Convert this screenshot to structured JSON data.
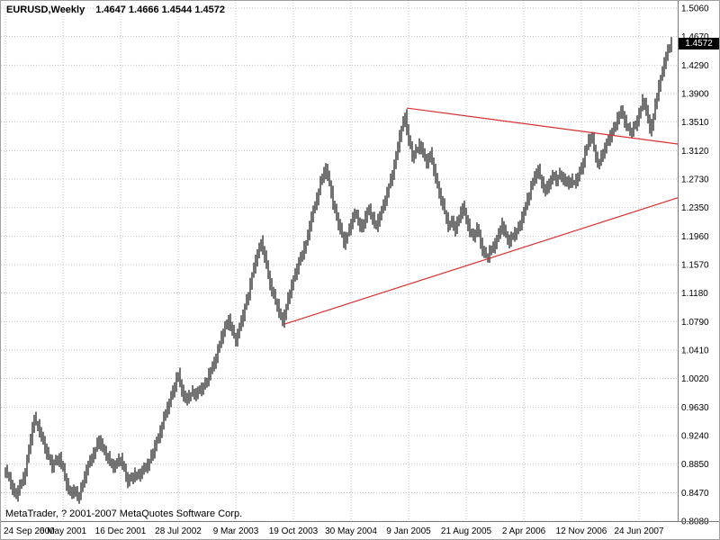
{
  "header": {
    "symbol_period": "EURUSD,Weekly",
    "ohlc_line": "1.4647 1.4666 1.4544 1.4572"
  },
  "footer": {
    "copyright": "MetaTrader, ? 2001-2007 MetaQuotes Software Corp."
  },
  "price_scale": {
    "current_price": "1.4572"
  },
  "colors": {
    "bar": "#000000",
    "grid": "#c4c4c4",
    "trendline": "#d83030",
    "axis_text": "#000000",
    "separator": "#7a7a7a",
    "price_tag_bg": "#000000",
    "price_tag_text": "#ffffff",
    "background": "#ffffff"
  },
  "chart_data": {
    "type": "bar",
    "title": "EURUSD,Weekly",
    "symbol": "EURUSD",
    "timeframe": "Weekly",
    "ohlc_display": {
      "open": 1.4647,
      "high": 1.4666,
      "low": 1.4544,
      "close": 1.4572
    },
    "y_range": [
      0.808,
      1.506
    ],
    "y_tick_labels": [
      "1.5060",
      "1.4670",
      "1.4290",
      "1.3900",
      "1.3510",
      "1.3120",
      "1.2730",
      "1.2350",
      "1.1960",
      "1.1570",
      "1.1180",
      "1.0790",
      "1.0410",
      "1.0020",
      "0.9630",
      "0.9240",
      "0.8850",
      "0.8470",
      "0.8080"
    ],
    "x_tick_labels": [
      "24 Sep 2000",
      "6 May 2001",
      "16 Dec 2001",
      "28 Jul 2002",
      "9 Mar 2003",
      "19 Oct 2003",
      "30 May 2004",
      "9 Jan 2005",
      "21 Aug 2005",
      "2 Apr 2006",
      "12 Nov 2006",
      "24 Jun 2007"
    ],
    "weeks_between_x_gridlines": 32,
    "closes_biweekly": [
      0.876,
      0.866,
      0.852,
      0.843,
      0.856,
      0.866,
      0.89,
      0.92,
      0.948,
      0.938,
      0.922,
      0.908,
      0.896,
      0.882,
      0.89,
      0.894,
      0.878,
      0.858,
      0.846,
      0.85,
      0.84,
      0.852,
      0.868,
      0.884,
      0.896,
      0.905,
      0.918,
      0.908,
      0.898,
      0.888,
      0.882,
      0.888,
      0.892,
      0.878,
      0.862,
      0.866,
      0.872,
      0.87,
      0.876,
      0.882,
      0.89,
      0.902,
      0.916,
      0.93,
      0.948,
      0.962,
      0.978,
      0.992,
      1.008,
      0.986,
      0.972,
      0.978,
      0.984,
      0.98,
      0.986,
      0.992,
      1.0,
      1.012,
      1.024,
      1.04,
      1.058,
      1.072,
      1.082,
      1.066,
      1.054,
      1.072,
      1.088,
      1.108,
      1.13,
      1.152,
      1.172,
      1.188,
      1.168,
      1.142,
      1.122,
      1.108,
      1.092,
      1.08,
      1.098,
      1.12,
      1.138,
      1.152,
      1.166,
      1.18,
      1.196,
      1.222,
      1.238,
      1.258,
      1.276,
      1.288,
      1.268,
      1.24,
      1.222,
      1.206,
      1.186,
      1.198,
      1.214,
      1.226,
      1.218,
      1.206,
      1.222,
      1.232,
      1.22,
      1.208,
      1.224,
      1.238,
      1.254,
      1.272,
      1.292,
      1.318,
      1.342,
      1.36,
      1.326,
      1.304,
      1.312,
      1.32,
      1.308,
      1.296,
      1.308,
      1.286,
      1.264,
      1.246,
      1.228,
      1.21,
      1.216,
      1.204,
      1.222,
      1.236,
      1.218,
      1.202,
      1.196,
      1.206,
      1.186,
      1.172,
      1.168,
      1.178,
      1.186,
      1.198,
      1.212,
      1.196,
      1.188,
      1.196,
      1.204,
      1.212,
      1.228,
      1.246,
      1.262,
      1.276,
      1.286,
      1.268,
      1.256,
      1.268,
      1.278,
      1.272,
      1.28,
      1.274,
      1.266,
      1.272,
      1.268,
      1.276,
      1.288,
      1.31,
      1.326,
      1.33,
      1.302,
      1.294,
      1.31,
      1.322,
      1.332,
      1.342,
      1.356,
      1.366,
      1.352,
      1.342,
      1.338,
      1.346,
      1.362,
      1.38,
      1.368,
      1.34,
      1.358,
      1.388,
      1.41,
      1.432,
      1.448,
      1.4572
    ],
    "trendlines": [
      {
        "name": "descending-trendline",
        "from_week": 223,
        "from_price": 1.37,
        "to_week": 380,
        "to_price": 1.319
      },
      {
        "name": "ascending-trendline",
        "from_week": 155,
        "from_price": 1.076,
        "to_week": 380,
        "to_price": 1.253
      }
    ]
  }
}
